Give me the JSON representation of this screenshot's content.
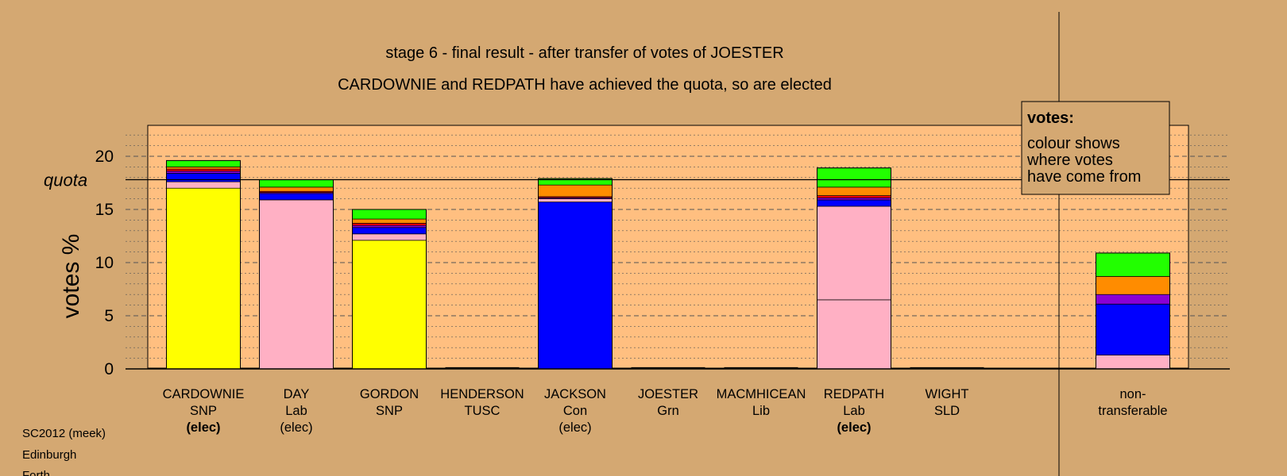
{
  "chart_data": {
    "type": "bar",
    "stacked": true,
    "title": "stage 6 - final result - after transfer of votes of JOESTER",
    "subtitle": "CARDOWNIE and REDPATH have achieved the quota, so are elected",
    "ylabel": "votes %",
    "ylim": [
      0,
      22.5
    ],
    "yticks": [
      0,
      5,
      10,
      15,
      20
    ],
    "quota": 17.8,
    "quota_label": "quota",
    "grid": true,
    "legend": {
      "title": "votes:",
      "lines": [
        "colour shows",
        "where votes",
        "have come from"
      ],
      "position": "top-right"
    },
    "colors": {
      "yellow": "#ffff00",
      "pink": "#ffb0c4",
      "blue": "#0000ff",
      "purple": "#8a00d4",
      "red": "#ff0000",
      "orange": "#ff8c00",
      "green": "#22ff00"
    },
    "candidates": [
      {
        "name": "CARDOWNIE",
        "party": "SNP",
        "status": "(elec)",
        "status_bold": true,
        "segments": [
          {
            "color": "yellow",
            "value": 17.0
          },
          {
            "color": "pink",
            "value": 0.6
          },
          {
            "color": "blue",
            "value": 0.8
          },
          {
            "color": "purple",
            "value": 0.2
          },
          {
            "color": "red",
            "value": 0.2
          },
          {
            "color": "orange",
            "value": 0.2
          },
          {
            "color": "green",
            "value": 0.6
          }
        ]
      },
      {
        "name": "DAY",
        "party": "Lab",
        "status": "(elec)",
        "status_bold": false,
        "segments": [
          {
            "color": "pink",
            "value": 15.9
          },
          {
            "color": "blue",
            "value": 0.6
          },
          {
            "color": "purple",
            "value": 0.1
          },
          {
            "color": "red",
            "value": 0.1
          },
          {
            "color": "orange",
            "value": 0.4
          },
          {
            "color": "green",
            "value": 0.7
          }
        ]
      },
      {
        "name": "GORDON",
        "party": "SNP",
        "status": "",
        "status_bold": false,
        "segments": [
          {
            "color": "yellow",
            "value": 12.1
          },
          {
            "color": "pink",
            "value": 0.6
          },
          {
            "color": "blue",
            "value": 0.6
          },
          {
            "color": "purple",
            "value": 0.2
          },
          {
            "color": "red",
            "value": 0.2
          },
          {
            "color": "orange",
            "value": 0.4
          },
          {
            "color": "green",
            "value": 0.9
          }
        ]
      },
      {
        "name": "HENDERSON",
        "party": "TUSC",
        "status": "",
        "status_bold": false,
        "segments": []
      },
      {
        "name": "JACKSON",
        "party": "Con",
        "status": "(elec)",
        "status_bold": false,
        "segments": [
          {
            "color": "blue",
            "value": 15.7
          },
          {
            "color": "pink",
            "value": 0.3
          },
          {
            "color": "purple",
            "value": 0.1
          },
          {
            "color": "red",
            "value": 0.1
          },
          {
            "color": "orange",
            "value": 1.1
          },
          {
            "color": "green",
            "value": 0.6
          }
        ]
      },
      {
        "name": "JOESTER",
        "party": "Grn",
        "status": "",
        "status_bold": false,
        "segments": []
      },
      {
        "name": "MACMHICEAN",
        "party": "Lib",
        "status": "",
        "status_bold": false,
        "segments": []
      },
      {
        "name": "REDPATH",
        "party": "Lab",
        "status": "(elec)",
        "status_bold": true,
        "segments": [
          {
            "color": "pink",
            "value": 6.5
          },
          {
            "color": "pink",
            "value": 8.8
          },
          {
            "color": "blue",
            "value": 0.6
          },
          {
            "color": "purple",
            "value": 0.2
          },
          {
            "color": "red",
            "value": 0.2
          },
          {
            "color": "orange",
            "value": 0.8
          },
          {
            "color": "green",
            "value": 1.8
          }
        ]
      },
      {
        "name": "WIGHT",
        "party": "SLD",
        "status": "",
        "status_bold": false,
        "segments": []
      }
    ],
    "nontransferable": {
      "label_lines": [
        "non-",
        "transferable"
      ],
      "segments": [
        {
          "color": "pink",
          "value": 1.3
        },
        {
          "color": "blue",
          "value": 4.8
        },
        {
          "color": "purple",
          "value": 0.9
        },
        {
          "color": "orange",
          "value": 1.7
        },
        {
          "color": "green",
          "value": 2.2
        }
      ]
    }
  },
  "footer": {
    "lines": [
      "SC2012 (meek)",
      "Edinburgh",
      "Forth"
    ]
  }
}
